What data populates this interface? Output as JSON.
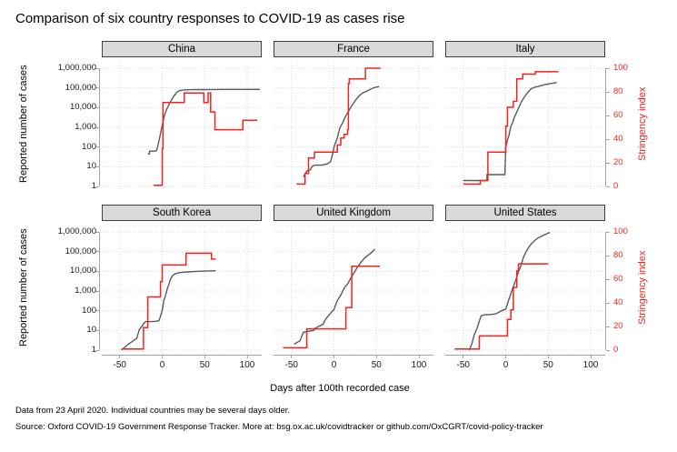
{
  "title": "Comparison of six country responses to COVID-19 as cases rise",
  "caption": {
    "line1": "Data from 23 April 2020. Individual countries may be several days older.",
    "line2": "Source: Oxford COVID-19 Government Response Tracker. More at: bsg.ox.ac.uk/covidtracker or github.com/OxCGRT/covid-policy-tracker"
  },
  "colors": {
    "stringency_red": "#f5221e",
    "cases_gray": "#5a5a5a",
    "grid": "#d8d8d8",
    "axis": "#a3a3a3",
    "strip_bg": "#d9d9d9",
    "strip_border": "#3f3f3f"
  },
  "chart_data": {
    "type": "line",
    "facet_layout": [
      [
        "China",
        "France",
        "Italy"
      ],
      [
        "South Korea",
        "United Kingdom",
        "United States"
      ]
    ],
    "x_axis": {
      "label": "Days after 100th recorded case",
      "ticks": [
        -50,
        0,
        50,
        100
      ],
      "range": [
        -60,
        115
      ]
    },
    "y_left": {
      "label": "Reported number of cases",
      "scale": "log10",
      "ticks": [
        "1",
        "10",
        "100",
        "1,000",
        "10,000",
        "100,000",
        "1,000,000"
      ],
      "range": [
        1,
        1000000
      ]
    },
    "y_right": {
      "label": "Stringency index",
      "ticks": [
        0,
        20,
        40,
        60,
        80,
        100
      ],
      "range": [
        0,
        100
      ]
    },
    "grid": "dotted",
    "panels": [
      {
        "country": "China",
        "cases": [
          [
            -17,
            45
          ],
          [
            -15,
            45
          ],
          [
            -15,
            62
          ],
          [
            -9,
            62
          ],
          [
            -7,
            65
          ],
          [
            -6,
            80
          ],
          [
            -5,
            121
          ],
          [
            -3,
            300
          ],
          [
            -1,
            800
          ],
          [
            1,
            2000
          ],
          [
            3,
            4500
          ],
          [
            5,
            7700
          ],
          [
            7,
            11800
          ],
          [
            9,
            17200
          ],
          [
            11,
            24500
          ],
          [
            13,
            34500
          ],
          [
            15,
            44700
          ],
          [
            17,
            59900
          ],
          [
            19,
            68500
          ],
          [
            21,
            74200
          ],
          [
            24,
            77200
          ],
          [
            27,
            79400
          ],
          [
            31,
            80700
          ],
          [
            36,
            81500
          ],
          [
            42,
            82200
          ],
          [
            50,
            82700
          ],
          [
            60,
            83300
          ],
          [
            75,
            83900
          ],
          [
            115,
            84500
          ]
        ],
        "stringency": [
          [
            -10,
            1
          ],
          [
            0,
            1
          ],
          [
            0,
            32
          ],
          [
            1,
            32
          ],
          [
            1,
            71
          ],
          [
            26,
            71
          ],
          [
            26,
            79
          ],
          [
            49,
            79
          ],
          [
            49,
            71
          ],
          [
            54,
            71
          ],
          [
            54,
            79
          ],
          [
            57,
            79
          ],
          [
            57,
            63
          ],
          [
            62,
            63
          ],
          [
            62,
            48
          ],
          [
            95,
            48
          ],
          [
            95,
            56
          ],
          [
            112,
            56
          ]
        ]
      },
      {
        "country": "France",
        "cases": [
          [
            -36,
            3
          ],
          [
            -32,
            6
          ],
          [
            -28,
            7
          ],
          [
            -25,
            11
          ],
          [
            -22,
            12
          ],
          [
            -14,
            12
          ],
          [
            -8,
            14
          ],
          [
            -4,
            18
          ],
          [
            -2,
            38
          ],
          [
            -1,
            57
          ],
          [
            0,
            100
          ],
          [
            4,
            285
          ],
          [
            7,
            949
          ],
          [
            10,
            1600
          ],
          [
            13,
            3300
          ],
          [
            16,
            5400
          ],
          [
            19,
            9100
          ],
          [
            22,
            14500
          ],
          [
            25,
            22300
          ],
          [
            28,
            33000
          ],
          [
            31,
            45000
          ],
          [
            34,
            56000
          ],
          [
            37,
            64000
          ],
          [
            40,
            74000
          ],
          [
            43,
            86000
          ],
          [
            46,
            98000
          ],
          [
            49,
            108000
          ],
          [
            53,
            117000
          ]
        ],
        "stringency": [
          [
            -44,
            2
          ],
          [
            -34,
            2
          ],
          [
            -34,
            11
          ],
          [
            -30,
            11
          ],
          [
            -30,
            24
          ],
          [
            -23,
            24
          ],
          [
            -23,
            29
          ],
          [
            4,
            29
          ],
          [
            4,
            35
          ],
          [
            8,
            35
          ],
          [
            8,
            41
          ],
          [
            12,
            41
          ],
          [
            12,
            44
          ],
          [
            16,
            44
          ],
          [
            16,
            48
          ],
          [
            17,
            48
          ],
          [
            17,
            87
          ],
          [
            18,
            87
          ],
          [
            18,
            91
          ],
          [
            37,
            91
          ],
          [
            37,
            100
          ],
          [
            55,
            100
          ]
        ]
      },
      {
        "country": "Italy",
        "cases": [
          [
            -50,
            2
          ],
          [
            -22,
            2
          ],
          [
            -22,
            4
          ],
          [
            -1,
            4
          ],
          [
            0,
            100
          ],
          [
            2,
            229
          ],
          [
            4,
            400
          ],
          [
            6,
            1100
          ],
          [
            8,
            1700
          ],
          [
            10,
            3100
          ],
          [
            14,
            7400
          ],
          [
            18,
            18000
          ],
          [
            22,
            35000
          ],
          [
            26,
            59000
          ],
          [
            30,
            92000
          ],
          [
            34,
            106000
          ],
          [
            40,
            125000
          ],
          [
            46,
            147000
          ],
          [
            52,
            163000
          ],
          [
            60,
            187000
          ]
        ],
        "stringency": [
          [
            -50,
            2
          ],
          [
            -30,
            2
          ],
          [
            -30,
            5
          ],
          [
            -21,
            5
          ],
          [
            -21,
            29
          ],
          [
            0,
            29
          ],
          [
            0,
            51
          ],
          [
            2,
            51
          ],
          [
            2,
            67
          ],
          [
            9,
            67
          ],
          [
            9,
            72
          ],
          [
            13,
            72
          ],
          [
            13,
            91
          ],
          [
            20,
            91
          ],
          [
            20,
            95
          ],
          [
            35,
            95
          ],
          [
            35,
            97
          ],
          [
            62,
            97
          ]
        ]
      },
      {
        "country": "South Korea",
        "cases": [
          [
            -48,
            1
          ],
          [
            -40,
            2
          ],
          [
            -34,
            3
          ],
          [
            -30,
            4
          ],
          [
            -27,
            11
          ],
          [
            -24,
            16
          ],
          [
            -21,
            25
          ],
          [
            -19,
            28
          ],
          [
            -12,
            28
          ],
          [
            -8,
            29
          ],
          [
            -4,
            31
          ],
          [
            -2,
            51
          ],
          [
            0,
            104
          ],
          [
            2,
            350
          ],
          [
            4,
            600
          ],
          [
            6,
            1300
          ],
          [
            8,
            2300
          ],
          [
            10,
            4200
          ],
          [
            12,
            5800
          ],
          [
            14,
            7000
          ],
          [
            17,
            7900
          ],
          [
            20,
            8600
          ],
          [
            25,
            9000
          ],
          [
            30,
            9300
          ],
          [
            40,
            9900
          ],
          [
            50,
            10300
          ],
          [
            63,
            10700
          ]
        ],
        "stringency": [
          [
            -48,
            1
          ],
          [
            -22,
            1
          ],
          [
            -22,
            19
          ],
          [
            -17,
            19
          ],
          [
            -17,
            45
          ],
          [
            -2,
            45
          ],
          [
            -2,
            58
          ],
          [
            0,
            58
          ],
          [
            0,
            72
          ],
          [
            28,
            72
          ],
          [
            28,
            82
          ],
          [
            58,
            82
          ],
          [
            58,
            77
          ],
          [
            63,
            77
          ]
        ]
      },
      {
        "country": "United Kingdom",
        "cases": [
          [
            -47,
            2
          ],
          [
            -40,
            3
          ],
          [
            -36,
            8
          ],
          [
            -30,
            9
          ],
          [
            -24,
            10
          ],
          [
            -22,
            13
          ],
          [
            -18,
            16
          ],
          [
            -13,
            20
          ],
          [
            -10,
            35
          ],
          [
            -6,
            60
          ],
          [
            -3,
            85
          ],
          [
            0,
            115
          ],
          [
            4,
            330
          ],
          [
            8,
            620
          ],
          [
            12,
            1400
          ],
          [
            16,
            2300
          ],
          [
            20,
            4600
          ],
          [
            24,
            8700
          ],
          [
            28,
            17300
          ],
          [
            32,
            29500
          ],
          [
            36,
            47000
          ],
          [
            40,
            65000
          ],
          [
            44,
            89000
          ],
          [
            48,
            133000
          ]
        ],
        "stringency": [
          [
            -60,
            2
          ],
          [
            -32,
            2
          ],
          [
            -32,
            18
          ],
          [
            14,
            18
          ],
          [
            14,
            36
          ],
          [
            21,
            36
          ],
          [
            21,
            71
          ],
          [
            54,
            71
          ]
        ]
      },
      {
        "country": "United States",
        "cases": [
          [
            -43,
            1
          ],
          [
            -40,
            2
          ],
          [
            -37,
            6
          ],
          [
            -34,
            12
          ],
          [
            -31,
            30
          ],
          [
            -29,
            55
          ],
          [
            -25,
            62
          ],
          [
            -20,
            64
          ],
          [
            -15,
            66
          ],
          [
            -11,
            72
          ],
          [
            -8,
            85
          ],
          [
            -4,
            105
          ],
          [
            0,
            118
          ],
          [
            4,
            400
          ],
          [
            8,
            1300
          ],
          [
            12,
            3700
          ],
          [
            15,
            9400
          ],
          [
            18,
            19600
          ],
          [
            21,
            52000
          ],
          [
            24,
            100000
          ],
          [
            27,
            160000
          ],
          [
            30,
            243000
          ],
          [
            34,
            365000
          ],
          [
            38,
            492000
          ],
          [
            42,
            600000
          ],
          [
            46,
            730000
          ],
          [
            52,
            940000
          ]
        ],
        "stringency": [
          [
            -60,
            1
          ],
          [
            -31,
            1
          ],
          [
            -31,
            12
          ],
          [
            2,
            12
          ],
          [
            2,
            26
          ],
          [
            6,
            26
          ],
          [
            6,
            34
          ],
          [
            9,
            34
          ],
          [
            9,
            53
          ],
          [
            13,
            53
          ],
          [
            13,
            67
          ],
          [
            15,
            67
          ],
          [
            15,
            73
          ],
          [
            50,
            73
          ]
        ]
      }
    ]
  }
}
